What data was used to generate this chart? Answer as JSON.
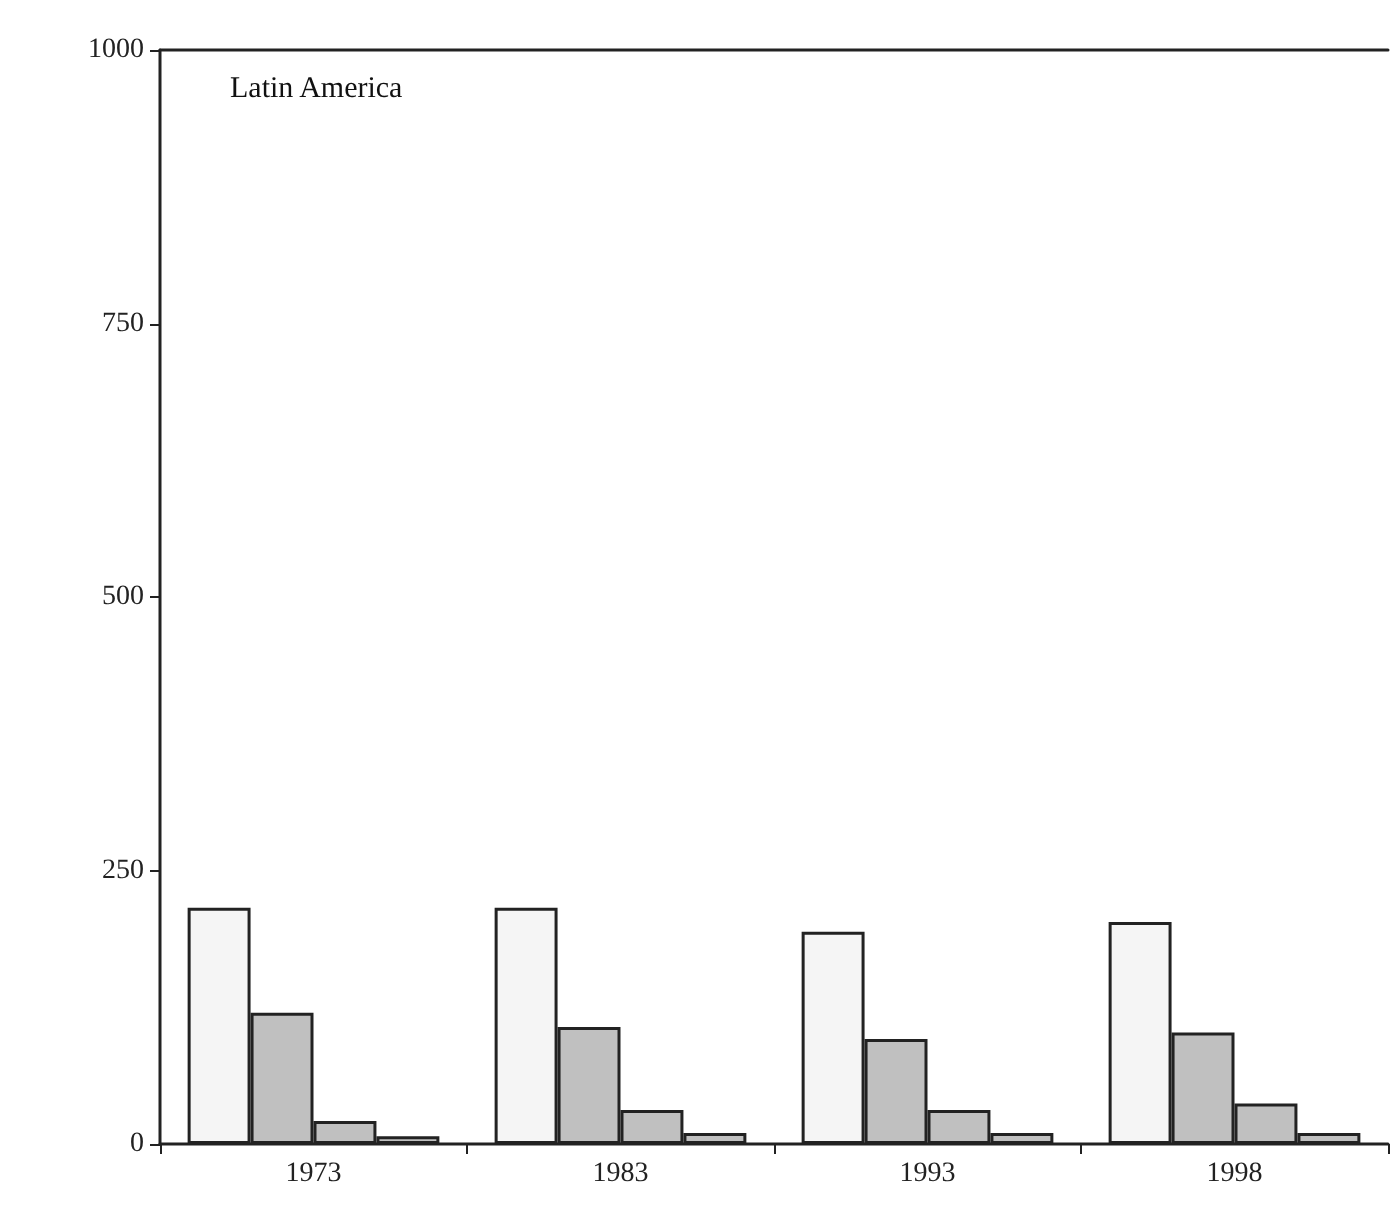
{
  "chart_data": {
    "type": "bar",
    "title": "Latin America",
    "categories": [
      "1973",
      "1983",
      "1993",
      "1998"
    ],
    "series": [
      {
        "color": "#f5f5f5",
        "values": [
          216,
          216,
          194,
          203
        ]
      },
      {
        "color": "#c0c0c0",
        "values": [
          120,
          107,
          96,
          102
        ]
      },
      {
        "color": "#c0c0c0",
        "values": [
          21,
          31,
          31,
          37
        ]
      },
      {
        "color": "#c0c0c0",
        "values": [
          7,
          10,
          10,
          10
        ]
      }
    ],
    "ylim": [
      0,
      1000
    ],
    "yticks": [
      0,
      250,
      500,
      750,
      1000
    ],
    "grid": false
  }
}
